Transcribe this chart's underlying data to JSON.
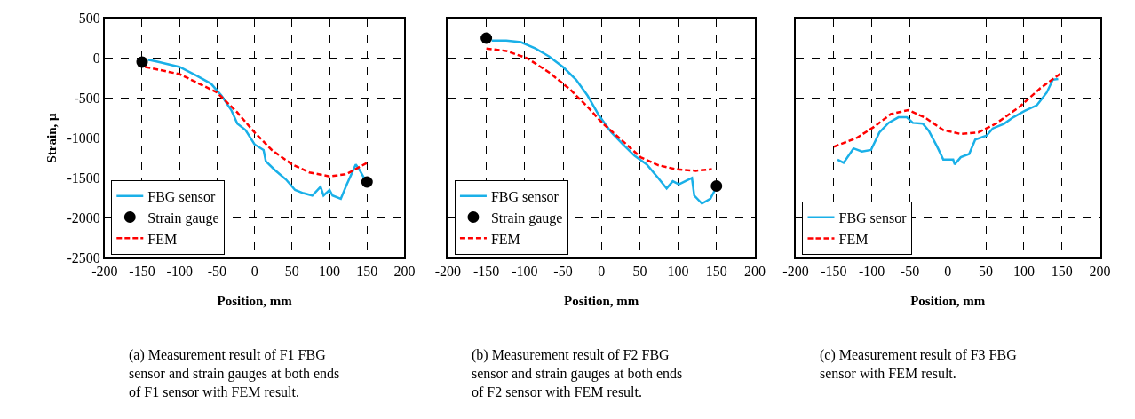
{
  "chart_data": [
    {
      "type": "line",
      "xlabel": "Position, mm",
      "ylabel": "Strain, μ",
      "xlim": [
        -200,
        200
      ],
      "xticks": [
        -200,
        -150,
        -100,
        -50,
        0,
        50,
        100,
        150,
        200
      ],
      "ylim": [
        -2500,
        500
      ],
      "yticks": [
        -2500,
        -2000,
        -1500,
        -1000,
        -500,
        0,
        500
      ],
      "grid": true,
      "legend": "bottom left",
      "annotations": [
        "(a) Measurement result of F1 FBG sensor and strain gauges at both ends of F1 sensor with FEM result."
      ],
      "series": [
        {
          "name": "FBG sensor",
          "line_style": "solid",
          "color": "#1ab0e8",
          "x": [
            -142,
            -127,
            -100,
            -77,
            -58,
            -44,
            -31,
            -23,
            -12,
            0,
            12,
            15,
            27,
            42,
            54,
            65,
            77,
            88,
            92,
            100,
            104,
            115,
            123,
            135,
            140,
            146
          ],
          "values": [
            -20,
            -50,
            -110,
            -220,
            -320,
            -470,
            -650,
            -820,
            -900,
            -1080,
            -1150,
            -1290,
            -1400,
            -1520,
            -1650,
            -1690,
            -1720,
            -1610,
            -1720,
            -1650,
            -1720,
            -1760,
            -1580,
            -1330,
            -1400,
            -1500
          ]
        },
        {
          "name": "Strain gauge",
          "type": "scatter",
          "marker": "circle",
          "color": "#000000",
          "x": [
            -150,
            150
          ],
          "values": [
            -50,
            -1550
          ]
        },
        {
          "name": "FEM",
          "line_style": "dashed",
          "color": "#ff0000",
          "x": [
            -146,
            -100,
            -50,
            -23,
            0,
            23,
            50,
            73,
            100,
            123,
            150
          ],
          "values": [
            -110,
            -200,
            -430,
            -680,
            -930,
            -1150,
            -1330,
            -1430,
            -1480,
            -1450,
            -1310
          ]
        }
      ]
    },
    {
      "type": "line",
      "xlabel": "Position, mm",
      "xlim": [
        -200,
        200
      ],
      "xticks": [
        -200,
        -150,
        -100,
        -50,
        0,
        50,
        100,
        150,
        200
      ],
      "ylim": [
        -2500,
        500
      ],
      "yticks": [
        -2500,
        -2000,
        -1500,
        -1000,
        -500,
        0,
        500
      ],
      "tick_labels": "x",
      "grid": true,
      "legend": "bottom left",
      "annotations": [
        "(b) Measurement result of F2 FBG sensor and strain gauges at both ends of F2 sensor with FEM result."
      ],
      "series": [
        {
          "name": "FBG sensor",
          "line_style": "solid",
          "color": "#1ab0e8",
          "x": [
            -143,
            -124,
            -105,
            -86,
            -68,
            -49,
            -33,
            -18,
            -3,
            13,
            28,
            43,
            59,
            74,
            85,
            93,
            101,
            118,
            121,
            131,
            142,
            148
          ],
          "values": [
            220,
            220,
            200,
            120,
            20,
            -120,
            -270,
            -470,
            -720,
            -930,
            -1080,
            -1220,
            -1330,
            -1500,
            -1630,
            -1540,
            -1580,
            -1500,
            -1720,
            -1820,
            -1760,
            -1650
          ]
        },
        {
          "name": "Strain gauge",
          "type": "scatter",
          "marker": "circle",
          "color": "#000000",
          "x": [
            -150,
            150
          ],
          "values": [
            250,
            -1600
          ]
        },
        {
          "name": "FEM",
          "line_style": "dashed",
          "color": "#ff0000",
          "x": [
            -150,
            -124,
            -97,
            -68,
            -41,
            -18,
            1,
            28,
            51,
            74,
            97,
            123,
            144
          ],
          "values": [
            120,
            90,
            0,
            -180,
            -390,
            -610,
            -810,
            -1040,
            -1240,
            -1340,
            -1390,
            -1410,
            -1390
          ]
        }
      ]
    },
    {
      "type": "line",
      "xlabel": "Position, mm",
      "xlim": [
        -200,
        200
      ],
      "xticks": [
        -200,
        -150,
        -100,
        -50,
        0,
        50,
        100,
        150,
        200
      ],
      "ylim": [
        -2500,
        500
      ],
      "yticks": [
        -2500,
        -2000,
        -1500,
        -1000,
        -500,
        0,
        500
      ],
      "tick_labels": "x",
      "grid": true,
      "legend": "bottom left",
      "annotations": [
        "(c) Measurement result of F3 FBG sensor with FEM result."
      ],
      "series": [
        {
          "name": "FBG sensor",
          "line_style": "solid",
          "color": "#1ab0e8",
          "x": [
            -145,
            -137,
            -124,
            -113,
            -101,
            -90,
            -78,
            -65,
            -54,
            -46,
            -33,
            -25,
            -14,
            -6,
            7,
            9,
            17,
            28,
            36,
            51,
            59,
            74,
            86,
            101,
            117,
            130,
            138,
            145
          ],
          "values": [
            -1270,
            -1310,
            -1130,
            -1170,
            -1150,
            -930,
            -810,
            -740,
            -740,
            -810,
            -820,
            -910,
            -1110,
            -1270,
            -1270,
            -1330,
            -1240,
            -1200,
            -1020,
            -970,
            -880,
            -820,
            -740,
            -660,
            -590,
            -430,
            -270,
            -260
          ]
        },
        {
          "name": "FEM",
          "line_style": "dashed",
          "color": "#ff0000",
          "x": [
            -150,
            -120,
            -97,
            -75,
            -52,
            -29,
            -6,
            17,
            40,
            63,
            94,
            121,
            150
          ],
          "values": [
            -1110,
            -1000,
            -860,
            -700,
            -650,
            -750,
            -900,
            -950,
            -930,
            -820,
            -610,
            -380,
            -180
          ]
        }
      ]
    }
  ]
}
